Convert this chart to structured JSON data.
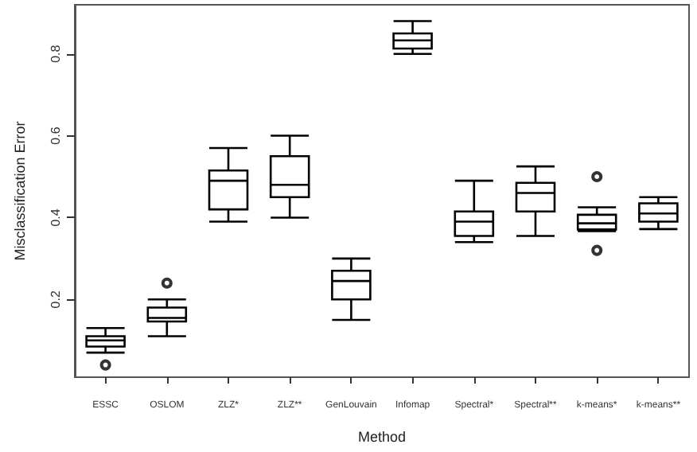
{
  "chart_data": {
    "type": "box",
    "xlabel": "Method",
    "ylabel": "Misclassification Error",
    "categories": [
      "ESSC",
      "OSLOM",
      "ZLZ*",
      "ZLZ**",
      "GenLouvain",
      "Infomap",
      "Spectral*",
      "Spectral**",
      "k-means*",
      "k-means**"
    ],
    "boxes": [
      {
        "low": 0.07,
        "q1": 0.085,
        "median": 0.1,
        "q3": 0.11,
        "high": 0.13,
        "outliers": [
          0.04
        ]
      },
      {
        "low": 0.11,
        "q1": 0.146,
        "median": 0.155,
        "q3": 0.18,
        "high": 0.2,
        "outliers": [
          0.24
        ]
      },
      {
        "low": 0.39,
        "q1": 0.42,
        "median": 0.49,
        "q3": 0.515,
        "high": 0.57
      },
      {
        "low": 0.4,
        "q1": 0.45,
        "median": 0.48,
        "q3": 0.55,
        "high": 0.6
      },
      {
        "low": 0.15,
        "q1": 0.2,
        "median": 0.245,
        "q3": 0.27,
        "high": 0.3
      },
      {
        "low": 0.8,
        "q1": 0.813,
        "median": 0.833,
        "q3": 0.85,
        "high": 0.88
      },
      {
        "low": 0.34,
        "q1": 0.355,
        "median": 0.39,
        "q3": 0.415,
        "high": 0.49
      },
      {
        "low": 0.355,
        "q1": 0.415,
        "median": 0.46,
        "q3": 0.485,
        "high": 0.525
      },
      {
        "low": 0.367,
        "q1": 0.371,
        "median": 0.386,
        "q3": 0.407,
        "high": 0.425,
        "outliers": [
          0.5,
          0.32
        ]
      },
      {
        "low": 0.372,
        "q1": 0.39,
        "median": 0.41,
        "q3": 0.435,
        "high": 0.45
      }
    ],
    "ylim": [
      0.01,
      0.92
    ],
    "yticks": [
      0.2,
      0.4,
      0.6,
      0.8
    ],
    "grid": false
  }
}
